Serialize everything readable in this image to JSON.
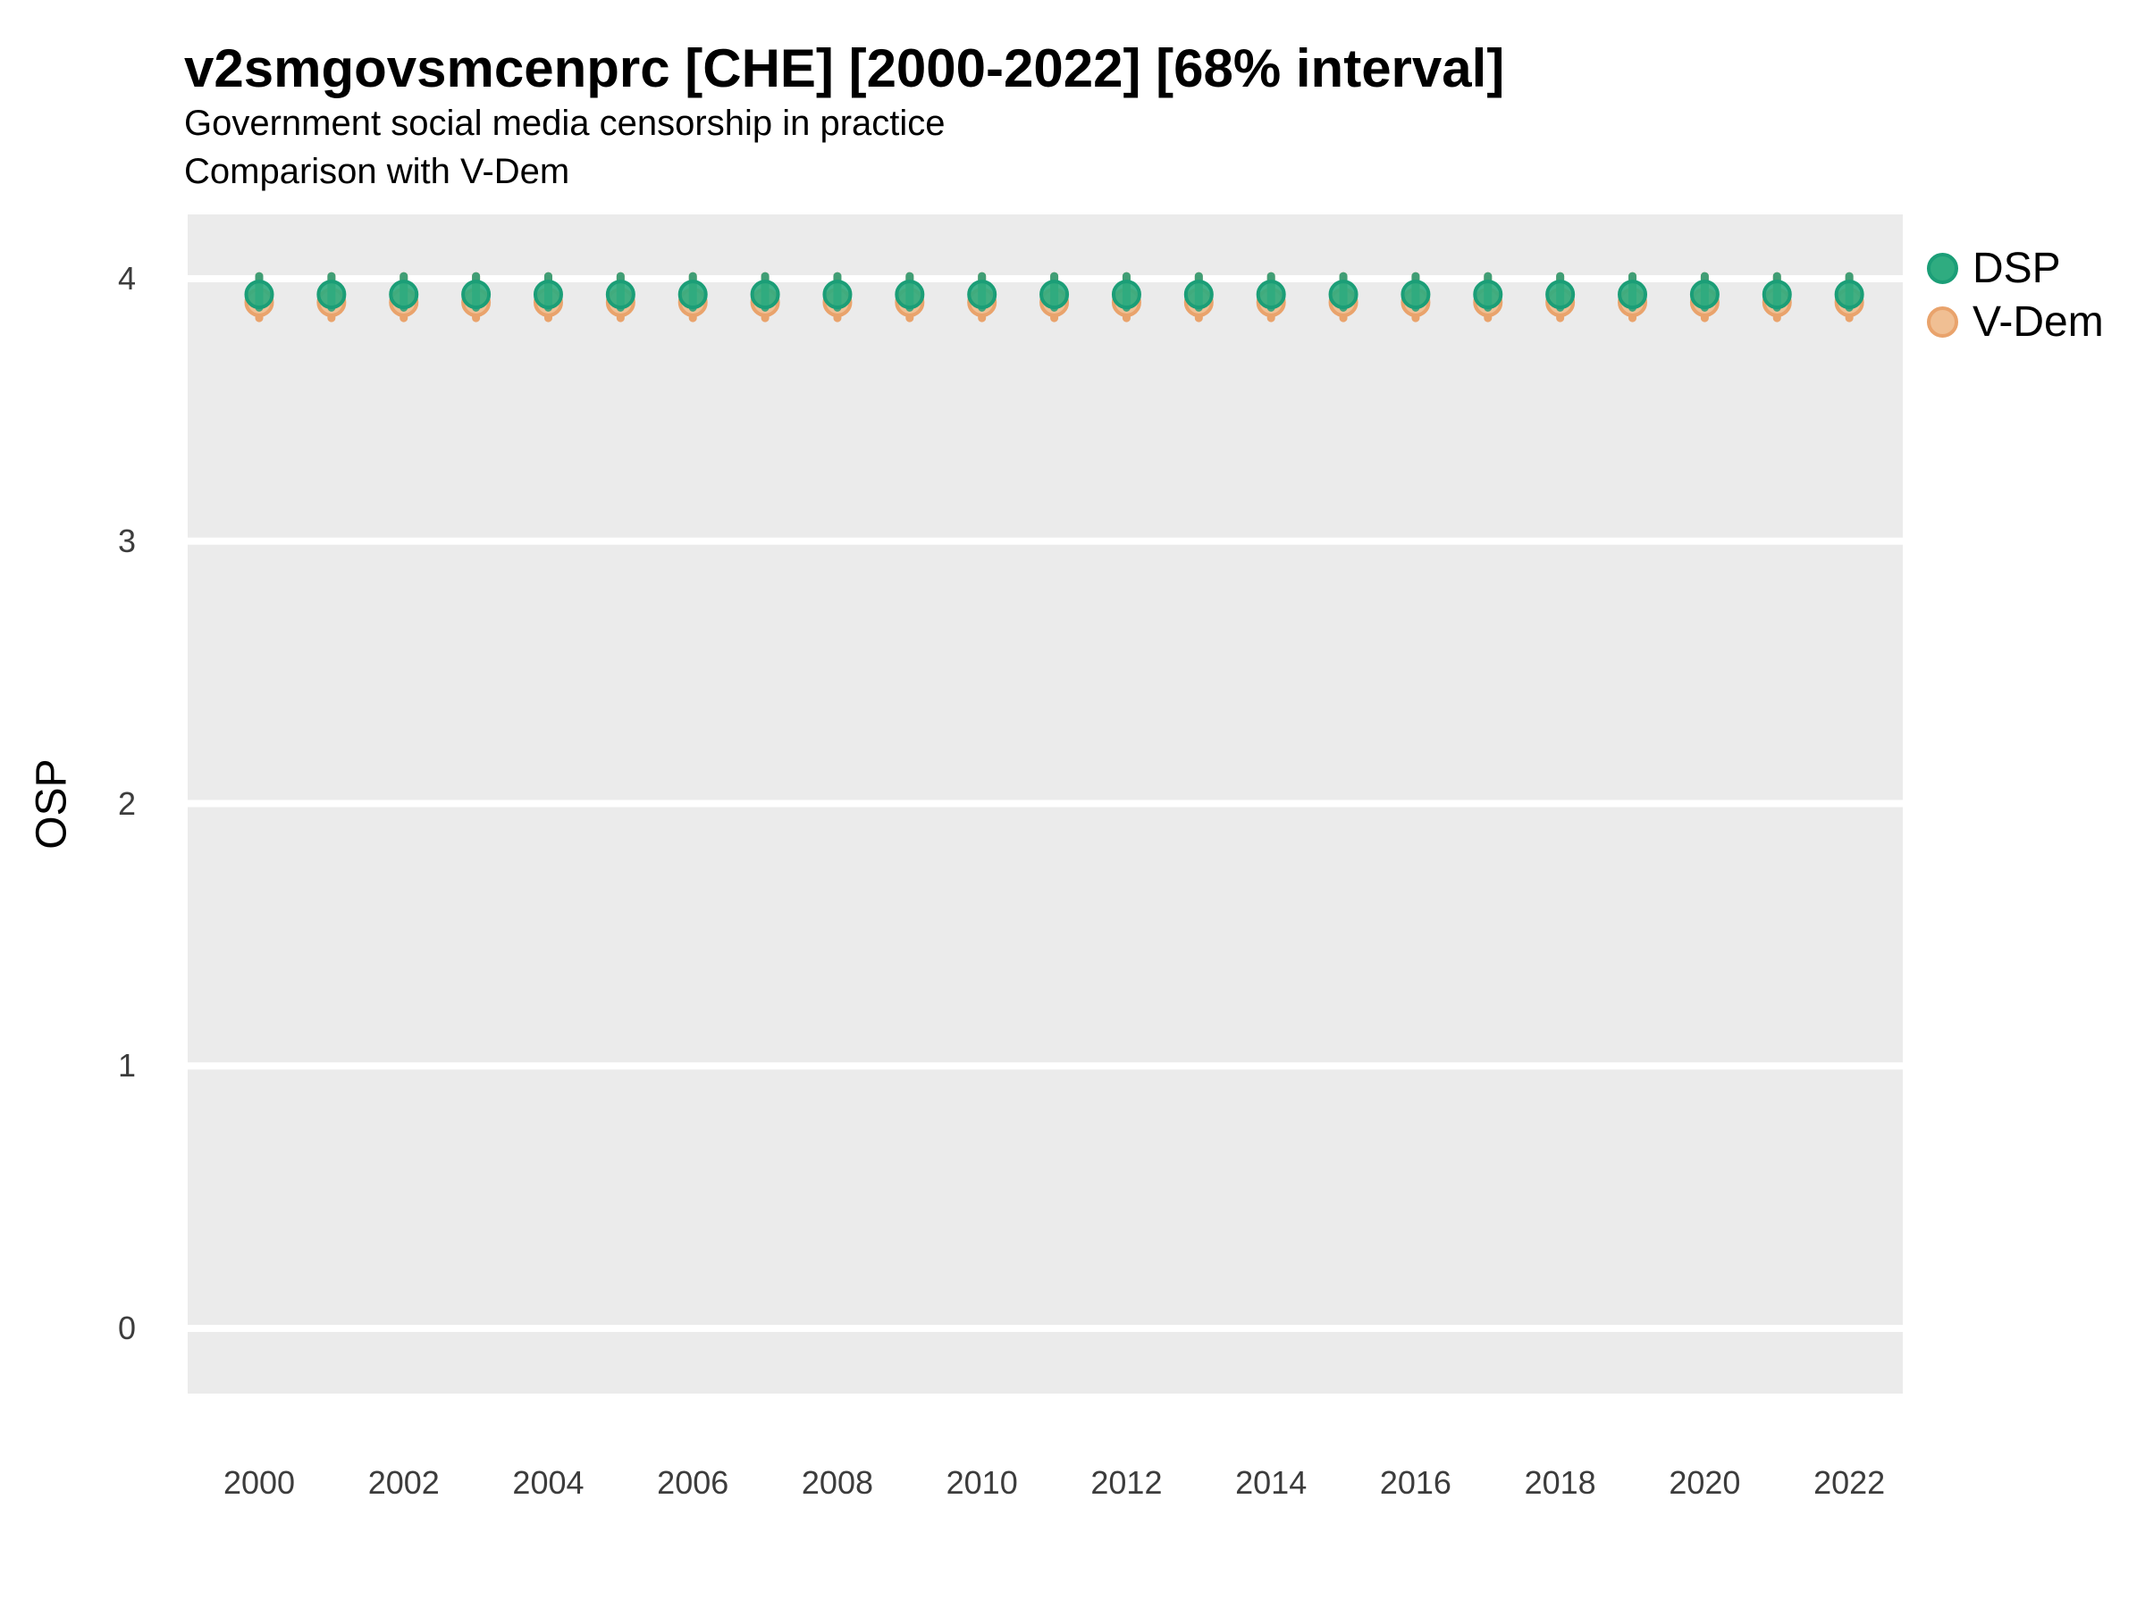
{
  "theme": {
    "panel_bg": "#EBEBEB",
    "grid_color": "#FFFFFF",
    "tick_color": "#3C3C3C",
    "text_color": "#000000"
  },
  "chart_data": {
    "type": "scatter",
    "title": "v2smgovsmcenprc [CHE] [2000-2022] [68% interval]",
    "subtitle": "Government social media censorship in practice",
    "subtitle2": "Comparison with V-Dem",
    "xlabel": "",
    "ylabel": "OSP",
    "interval": "68%",
    "country": "CHE",
    "grid": "horizontal white major gridlines on gray panel",
    "legend_position": "right",
    "ylim": [
      -0.25,
      4.25
    ],
    "xlim": [
      1999.0,
      2023.7
    ],
    "y_ticks": [
      0,
      1,
      2,
      3,
      4
    ],
    "x_ticks": [
      2000,
      2002,
      2004,
      2006,
      2008,
      2010,
      2012,
      2014,
      2016,
      2018,
      2020,
      2022
    ],
    "x": [
      2000,
      2001,
      2002,
      2003,
      2004,
      2005,
      2006,
      2007,
      2008,
      2009,
      2010,
      2011,
      2012,
      2013,
      2014,
      2015,
      2016,
      2017,
      2018,
      2019,
      2020,
      2021,
      2022
    ],
    "series": [
      {
        "name": "DSP",
        "color": "#1B9E77",
        "fill": "#2FAC80",
        "values": [
          3.94,
          3.94,
          3.94,
          3.94,
          3.94,
          3.94,
          3.94,
          3.94,
          3.94,
          3.94,
          3.94,
          3.94,
          3.94,
          3.94,
          3.94,
          3.94,
          3.94,
          3.94,
          3.94,
          3.94,
          3.94,
          3.94,
          3.94
        ],
        "lower": [
          3.89,
          3.89,
          3.89,
          3.89,
          3.89,
          3.89,
          3.89,
          3.89,
          3.89,
          3.89,
          3.89,
          3.89,
          3.89,
          3.89,
          3.89,
          3.89,
          3.89,
          3.89,
          3.89,
          3.89,
          3.89,
          3.89,
          3.89
        ],
        "upper": [
          4.01,
          4.01,
          4.01,
          4.01,
          4.01,
          4.01,
          4.01,
          4.01,
          4.01,
          4.01,
          4.01,
          4.01,
          4.01,
          4.01,
          4.01,
          4.01,
          4.01,
          4.01,
          4.01,
          4.01,
          4.01,
          4.01,
          4.01
        ]
      },
      {
        "name": "V-Dem",
        "color": "#E9A36C",
        "fill": "#F0BF93",
        "values": [
          3.91,
          3.91,
          3.91,
          3.91,
          3.91,
          3.91,
          3.91,
          3.91,
          3.91,
          3.91,
          3.91,
          3.91,
          3.91,
          3.91,
          3.91,
          3.91,
          3.91,
          3.91,
          3.91,
          3.91,
          3.91,
          3.91,
          3.91
        ],
        "lower": [
          3.85,
          3.85,
          3.85,
          3.85,
          3.85,
          3.85,
          3.85,
          3.85,
          3.85,
          3.85,
          3.85,
          3.85,
          3.85,
          3.85,
          3.85,
          3.85,
          3.85,
          3.85,
          3.85,
          3.85,
          3.85,
          3.85,
          3.85
        ],
        "upper": [
          4.01,
          4.01,
          4.01,
          4.01,
          4.01,
          4.01,
          4.01,
          4.01,
          4.01,
          4.01,
          4.01,
          4.01,
          4.01,
          4.01,
          4.01,
          4.01,
          4.01,
          4.01,
          4.01,
          4.01,
          4.01,
          4.01,
          4.01
        ]
      }
    ]
  }
}
